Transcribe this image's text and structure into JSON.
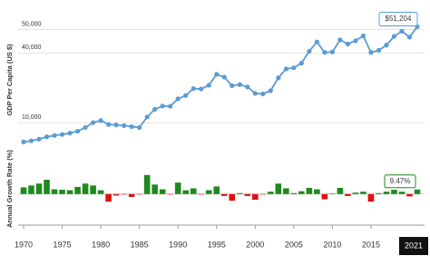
{
  "chart_data": [
    {
      "type": "line",
      "y_label": "GDP Per Capita (US $)",
      "x": [
        1970,
        1971,
        1972,
        1973,
        1974,
        1975,
        1976,
        1977,
        1978,
        1979,
        1980,
        1981,
        1982,
        1983,
        1984,
        1985,
        1986,
        1987,
        1988,
        1989,
        1990,
        1991,
        1992,
        1993,
        1994,
        1995,
        1996,
        1997,
        1998,
        1999,
        2000,
        2001,
        2002,
        2003,
        2004,
        2005,
        2006,
        2007,
        2008,
        2009,
        2010,
        2011,
        2012,
        2013,
        2014,
        2015,
        2016,
        2017,
        2018,
        2019,
        2020,
        2021
      ],
      "series": [
        {
          "name": "GDP Per Capita",
          "color": "#5b9bd5",
          "values": [
            1800,
            2300,
            3000,
            4000,
            4600,
            5000,
            5600,
            6400,
            8000,
            10100,
            11000,
            9300,
            9100,
            8800,
            8400,
            8000,
            12500,
            15800,
            17200,
            17100,
            20300,
            21700,
            24700,
            24500,
            26100,
            30800,
            29600,
            25900,
            26400,
            25400,
            22600,
            22400,
            23800,
            29300,
            33100,
            33600,
            35600,
            40700,
            44700,
            40200,
            40400,
            45600,
            43800,
            45200,
            47300,
            40200,
            41100,
            43300,
            47100,
            49300,
            46770,
            51204
          ]
        }
      ],
      "last_value_label": "$51,204",
      "xlim": [
        1970,
        2021
      ],
      "ylim": [
        0,
        58000
      ],
      "yticks": [
        {
          "value": 10000,
          "label": "10,000"
        },
        {
          "value": 40000,
          "label": "40,000"
        },
        {
          "value": 50000,
          "label": "50,000"
        }
      ],
      "grid": true
    },
    {
      "type": "bar",
      "y_label": "Annual Growth Rate (%)",
      "x": [
        1970,
        1971,
        1972,
        1973,
        1974,
        1975,
        1976,
        1977,
        1978,
        1979,
        1980,
        1981,
        1982,
        1983,
        1984,
        1985,
        1986,
        1987,
        1988,
        1989,
        1990,
        1991,
        1992,
        1993,
        1994,
        1995,
        1996,
        1997,
        1998,
        1999,
        2000,
        2001,
        2002,
        2003,
        2004,
        2005,
        2006,
        2007,
        2008,
        2009,
        2010,
        2011,
        2012,
        2013,
        2014,
        2015,
        2016,
        2017,
        2018,
        2019,
        2020,
        2021
      ],
      "values": [
        14,
        18,
        22,
        30,
        10,
        9,
        8,
        15,
        22,
        18,
        8,
        -16,
        -3,
        -1,
        -6,
        -1,
        40,
        20,
        10,
        -1,
        24,
        8,
        12,
        -1,
        8,
        16,
        -4,
        -14,
        2,
        -4,
        -12,
        -1,
        5,
        22,
        12,
        2,
        6,
        13,
        10,
        -11,
        1,
        13,
        -4,
        3,
        5,
        -16,
        2,
        5,
        9,
        5,
        -5,
        9.47
      ],
      "last_value_label": "9.47%",
      "positive_color": "#1e8a1e",
      "negative_color": "#e01010",
      "xlim": [
        1970,
        2021
      ],
      "ylim": [
        -50,
        72
      ],
      "xticks": [
        1970,
        1975,
        1980,
        1985,
        1990,
        1995,
        2000,
        2005,
        2010,
        2015
      ],
      "highlight_x": 2021
    }
  ]
}
